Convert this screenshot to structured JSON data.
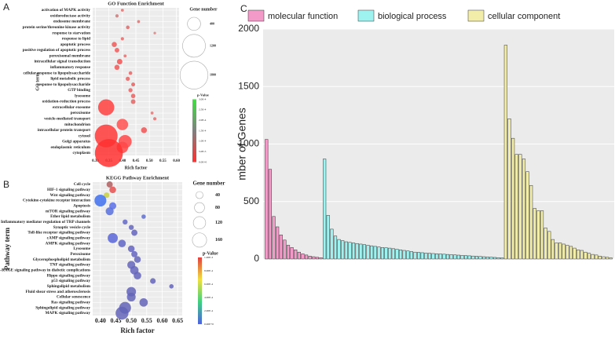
{
  "chart_data": [
    {
      "type": "bubble",
      "panel_label": "A",
      "title": "GO Function Enrichment",
      "xlabel": "Rich factor",
      "ylabel": "GO term",
      "categories": [
        "activation of MAPK activity",
        "oxidoreductase activity",
        "endosome membrane",
        "protein serine/threonine kinase activity",
        "response to starvation",
        "response to lipid",
        "apoptotic process",
        "positive regulation of apoptotic process",
        "peroxisomal membrane",
        "intracellular signal transduction",
        "inflammatory response",
        "cellular response to lipopolysaccharide",
        "lipid metabolic process",
        "response to lipopolysaccharide",
        "GTP binding",
        "lysosome",
        "oxidation-reduction process",
        "extracellular exosome",
        "peroxisome",
        "vesicle-mediated transport",
        "mitochondrion",
        "intracellular protein transport",
        "cytosol",
        "Golgi apparatus",
        "endoplasmic reticulum",
        "cytoplasm"
      ],
      "x": [
        0.4,
        0.38,
        0.46,
        0.42,
        0.52,
        0.4,
        0.37,
        0.38,
        0.41,
        0.39,
        0.38,
        0.43,
        0.42,
        0.44,
        0.43,
        0.44,
        0.44,
        0.34,
        0.51,
        0.52,
        0.4,
        0.48,
        0.34,
        0.41,
        0.4,
        0.35
      ],
      "sizes": [
        20,
        25,
        20,
        30,
        15,
        25,
        60,
        50,
        20,
        70,
        60,
        30,
        40,
        35,
        40,
        45,
        50,
        600,
        20,
        25,
        300,
        80,
        1200,
        400,
        300,
        1800
      ],
      "colors": [
        "#e07070",
        "#d07878",
        "#e07070",
        "#e06868",
        "#d88080",
        "#e06a6a",
        "#f05858",
        "#f05a5a",
        "#e07070",
        "#f05555",
        "#f05858",
        "#e86565",
        "#e86565",
        "#e86060",
        "#e86565",
        "#ec6060",
        "#ec6060",
        "#ff4040",
        "#e07575",
        "#e07070",
        "#ff5050",
        "#f05555",
        "#ff3838",
        "#ff4848",
        "#ff4848",
        "#ff3030"
      ],
      "xlim": [
        0.29,
        0.61
      ],
      "xticks": [
        {
          "value": 0.3,
          "label": "0.30"
        },
        0.35,
        {
          "value": 0.4,
          "label": "0.40"
        },
        0.45,
        {
          "value": 0.5,
          "label": "0.50"
        },
        0.55,
        {
          "value": 0.6,
          "label": "0.60"
        }
      ],
      "size_legend": {
        "title": "Gene number",
        "values": [
          400,
          1200,
          1800
        ]
      },
      "colorbar": {
        "title": "p-Value",
        "colors": [
          "#40e040",
          "#808080",
          "#ff3030"
        ],
        "labels": [
          "3.0E-4",
          "2.5E-4",
          "2.0E-4",
          "1.5E-4",
          "1.0E-4",
          "5.0E-5",
          "0.0E+0"
        ]
      }
    },
    {
      "type": "bubble",
      "panel_label": "B",
      "title": "KEGG Pathway Enrichment",
      "xlabel": "Rich factor",
      "ylabel": "Pathway term",
      "categories": [
        "Cell cycle",
        "HIF-1 signaling pathway",
        "Wnt signaling pathway",
        "Cytokine-cytokine receptor interaction",
        "Apoptosis",
        "mTOR signaling pathway",
        "Ether lipid metabolism",
        "Inflammatory mediator regulation of TRP channels",
        "Synaptic vesicle cycle",
        "Toll-like receptor signaling pathway",
        "cAMP signaling pathway",
        "AMPK signaling pathway",
        "Lysosome",
        "Peroxisome",
        "Glycerophospholipid metabolism",
        "TNF signaling pathway",
        "AGE-RAGE signaling pathway in diabetic complications",
        "Hippo signaling pathway",
        "p53 signaling pathway",
        "Sphingolipid metabolism",
        "Fluid shear stress and atherosclerosis",
        "Cellular senescence",
        "Ras signaling pathway",
        "Sphingolipid signaling pathway",
        "MAPK signaling pathway"
      ],
      "x": [
        0.43,
        0.44,
        0.42,
        0.4,
        0.44,
        0.43,
        0.54,
        0.48,
        0.5,
        0.51,
        0.44,
        0.47,
        0.5,
        0.51,
        0.52,
        0.5,
        0.51,
        0.52,
        0.57,
        0.63,
        0.5,
        0.5,
        0.54,
        0.48,
        0.47
      ],
      "sizes": [
        30,
        35,
        25,
        110,
        40,
        50,
        15,
        20,
        20,
        30,
        80,
        45,
        35,
        30,
        35,
        50,
        55,
        45,
        25,
        15,
        70,
        60,
        55,
        110,
        130
      ],
      "colors": [
        "#b06060",
        "#e85050",
        "#c8d040",
        "#4070f0",
        "#5a70e8",
        "#5870e0",
        "#6070d0",
        "#6468c8",
        "#6466c0",
        "#6464c0",
        "#5a66d8",
        "#6066c8",
        "#6464c0",
        "#6464c0",
        "#6464bc",
        "#6464bc",
        "#6464bc",
        "#6464bc",
        "#6464bc",
        "#6464bc",
        "#6464b8",
        "#6464b8",
        "#6464b8",
        "#6464b8",
        "#6464b8"
      ],
      "xlim": [
        0.375,
        0.665
      ],
      "xticks": [
        {
          "value": 0.4,
          "label": "0.40"
        },
        0.45,
        {
          "value": 0.5,
          "label": "0.50"
        },
        0.55,
        {
          "value": 0.6,
          "label": "0.60"
        },
        0.65
      ],
      "size_legend": {
        "title": "Gene number",
        "values": [
          40,
          80,
          120,
          160
        ]
      },
      "colorbar": {
        "title": "p-Value",
        "colors": [
          "#e04040",
          "#f0e040",
          "#40d080",
          "#5060e0"
        ],
        "labels": [
          "1.00E-3",
          "8.00E-4",
          "6.00E-4",
          "4.00E-4",
          "2.00E-4",
          "0.00E+0"
        ]
      }
    },
    {
      "type": "bar",
      "panel_label": "C",
      "ylabel": "mber of Genes",
      "groups": [
        {
          "name": "molecular function",
          "color": "#f49ac8",
          "values": [
            1040,
            780,
            370,
            280,
            210,
            165,
            120,
            100,
            80,
            60,
            45,
            35,
            25,
            20,
            15,
            12
          ]
        },
        {
          "name": "biological process",
          "color": "#9ef2f0",
          "values": [
            870,
            380,
            260,
            200,
            170,
            160,
            150,
            145,
            140,
            135,
            130,
            125,
            120,
            115,
            110,
            105,
            100,
            98,
            95,
            90,
            85,
            80,
            75,
            70,
            65,
            60,
            58,
            55,
            52,
            50,
            48,
            46,
            44,
            42,
            40,
            38,
            36,
            34,
            32,
            30,
            28,
            26,
            24,
            22,
            20,
            18,
            16,
            14,
            12,
            10
          ]
        },
        {
          "name": "cellular component",
          "color": "#f2eeaa",
          "values": [
            1860,
            1220,
            1050,
            910,
            910,
            870,
            760,
            640,
            440,
            420,
            420,
            270,
            240,
            170,
            140,
            140,
            130,
            120,
            110,
            95,
            80,
            75,
            60,
            50,
            40,
            35,
            25,
            20,
            15,
            10
          ]
        }
      ],
      "ylim": [
        0,
        2000
      ],
      "yticks": [
        0,
        500,
        1000,
        1500,
        2000
      ],
      "grid": true
    }
  ]
}
